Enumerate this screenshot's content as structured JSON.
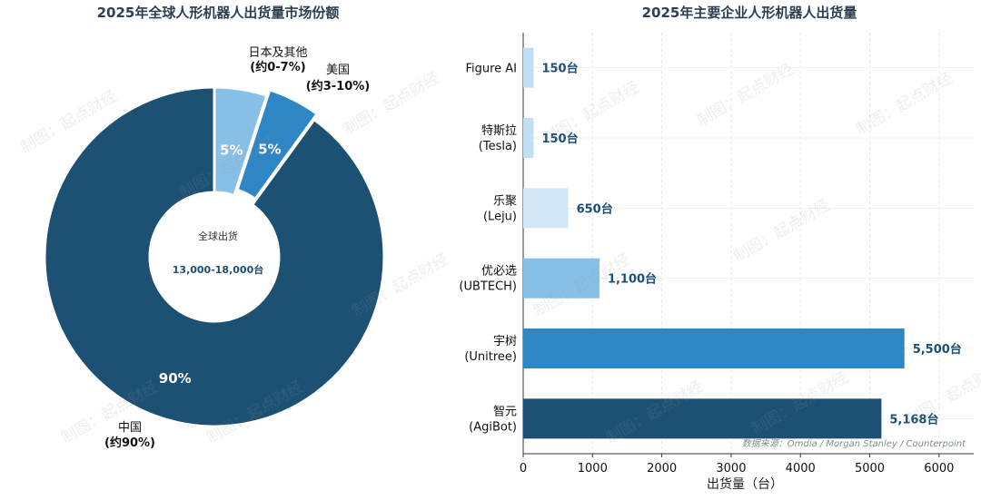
{
  "watermark_text": "制图：起点财经",
  "source_note": "数据来源：Omdia / Morgan Stanley / Counterpoint",
  "colors": {
    "dark": "#1c5174",
    "mid": "#2e86c4",
    "light": "#88bfe6",
    "pale": "#d4e7f6",
    "title": "#2c3e50",
    "label_blue": "#1c4f73"
  },
  "chart_data": [
    {
      "type": "pie",
      "title": "2025年全球人形机器人出货量市场份额",
      "center_label": "全球出货",
      "center_value": "13,000-18,000台",
      "slices": [
        {
          "name": "中国",
          "range": "(约90%)",
          "value": 90,
          "pct_label": "90%",
          "color": "#1c5174"
        },
        {
          "name": "美国",
          "range": "(约3-10%)",
          "value": 5,
          "pct_label": "5%",
          "color": "#2e86c4"
        },
        {
          "name": "日本及其他",
          "range": "(约0-7%)",
          "value": 5,
          "pct_label": "5%",
          "color": "#88bfe6"
        }
      ]
    },
    {
      "type": "bar",
      "orientation": "horizontal",
      "title": "2025年主要企业人形机器人出货量",
      "xlabel": "出货量（台）",
      "xlim": [
        0,
        6500
      ],
      "xticks": [
        "0",
        "1000",
        "2000",
        "3000",
        "4000",
        "5000",
        "6000"
      ],
      "grid": true,
      "categories": [
        {
          "line1": "智元",
          "line2": "(AgiBot)"
        },
        {
          "line1": "宇树",
          "line2": "(Unitree)"
        },
        {
          "line1": "优必选",
          "line2": "(UBTECH)"
        },
        {
          "line1": "乐聚",
          "line2": "(Leju)"
        },
        {
          "line1": "特斯拉",
          "line2": "(Tesla)"
        },
        {
          "line1": "Figure AI",
          "line2": ""
        }
      ],
      "values": [
        5168,
        5500,
        1100,
        650,
        150,
        150
      ],
      "value_labels": [
        "5,168台",
        "5,500台",
        "1,100台",
        "650台",
        "150台",
        "150台"
      ],
      "bar_colors": [
        "#1c5174",
        "#2e86c4",
        "#88bfe6",
        "#d4e7f6",
        "#c3dff2",
        "#c3dff2"
      ]
    }
  ]
}
